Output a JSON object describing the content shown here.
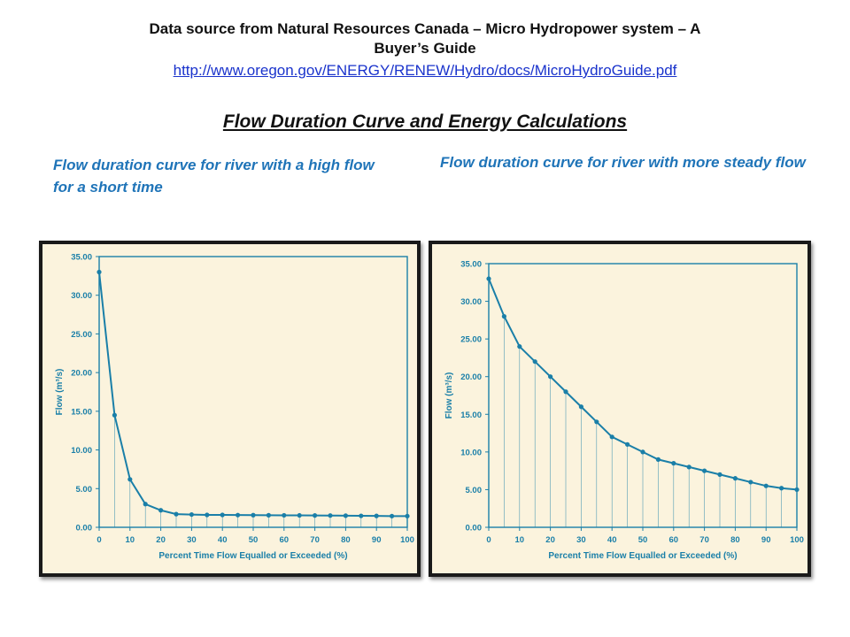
{
  "source": {
    "line1": "Data source from Natural Resources Canada – Micro Hydropower system – A",
    "line2": "Buyer’s Guide",
    "url": "http://www.oregon.gov/ENERGY/RENEW/Hydro/docs/MicroHydroGuide.pdf"
  },
  "heading": "Flow Duration Curve and Energy Calculations",
  "captions": {
    "left": "Flow duration curve for river with a high flow for a short time",
    "right": "Flow duration curve for river with more steady flow"
  },
  "colors": {
    "axis": "#1a7fa8",
    "line": "#1a7fa8",
    "caption": "#1f74b8",
    "panel": "#fbf3dd"
  },
  "chart_data": [
    {
      "type": "line",
      "xlabel": "Percent Time Flow Equalled or Exceeded (%)",
      "ylabel": "Flow (m³/s)",
      "xlim": [
        0,
        100
      ],
      "ylim": [
        0,
        35
      ],
      "xticks": [
        0,
        10,
        20,
        30,
        40,
        50,
        60,
        70,
        80,
        90,
        100
      ],
      "yticks": [
        "0.00",
        "5.00",
        "10.00",
        "15.00",
        "20.00",
        "25.00",
        "30.00",
        "35.00"
      ],
      "x": [
        0,
        5,
        10,
        15,
        20,
        25,
        30,
        35,
        40,
        45,
        50,
        55,
        60,
        65,
        70,
        75,
        80,
        85,
        90,
        95,
        100
      ],
      "y": [
        33.0,
        14.5,
        6.2,
        3.0,
        2.2,
        1.7,
        1.65,
        1.6,
        1.6,
        1.58,
        1.57,
        1.56,
        1.55,
        1.54,
        1.53,
        1.52,
        1.5,
        1.48,
        1.47,
        1.45,
        1.45
      ],
      "drop_lines": true,
      "grid": false
    },
    {
      "type": "line",
      "xlabel": "Percent Time Flow Equalled or Exceeded (%)",
      "ylabel": "Flow (m³/s)",
      "xlim": [
        0,
        100
      ],
      "ylim": [
        0,
        35
      ],
      "xticks": [
        0,
        10,
        20,
        30,
        40,
        50,
        60,
        70,
        80,
        90,
        100
      ],
      "yticks": [
        "0.00",
        "5.00",
        "10.00",
        "15.00",
        "20.00",
        "25.00",
        "30.00",
        "35.00"
      ],
      "x": [
        0,
        5,
        10,
        15,
        20,
        25,
        30,
        35,
        40,
        45,
        50,
        55,
        60,
        65,
        70,
        75,
        80,
        85,
        90,
        95,
        100
      ],
      "y": [
        33.0,
        28.0,
        24.0,
        22.0,
        20.0,
        18.0,
        16.0,
        14.0,
        12.0,
        11.0,
        10.0,
        9.0,
        8.5,
        8.0,
        7.5,
        7.0,
        6.5,
        6.0,
        5.5,
        5.2,
        5.0
      ],
      "drop_lines": true,
      "grid": false
    }
  ]
}
